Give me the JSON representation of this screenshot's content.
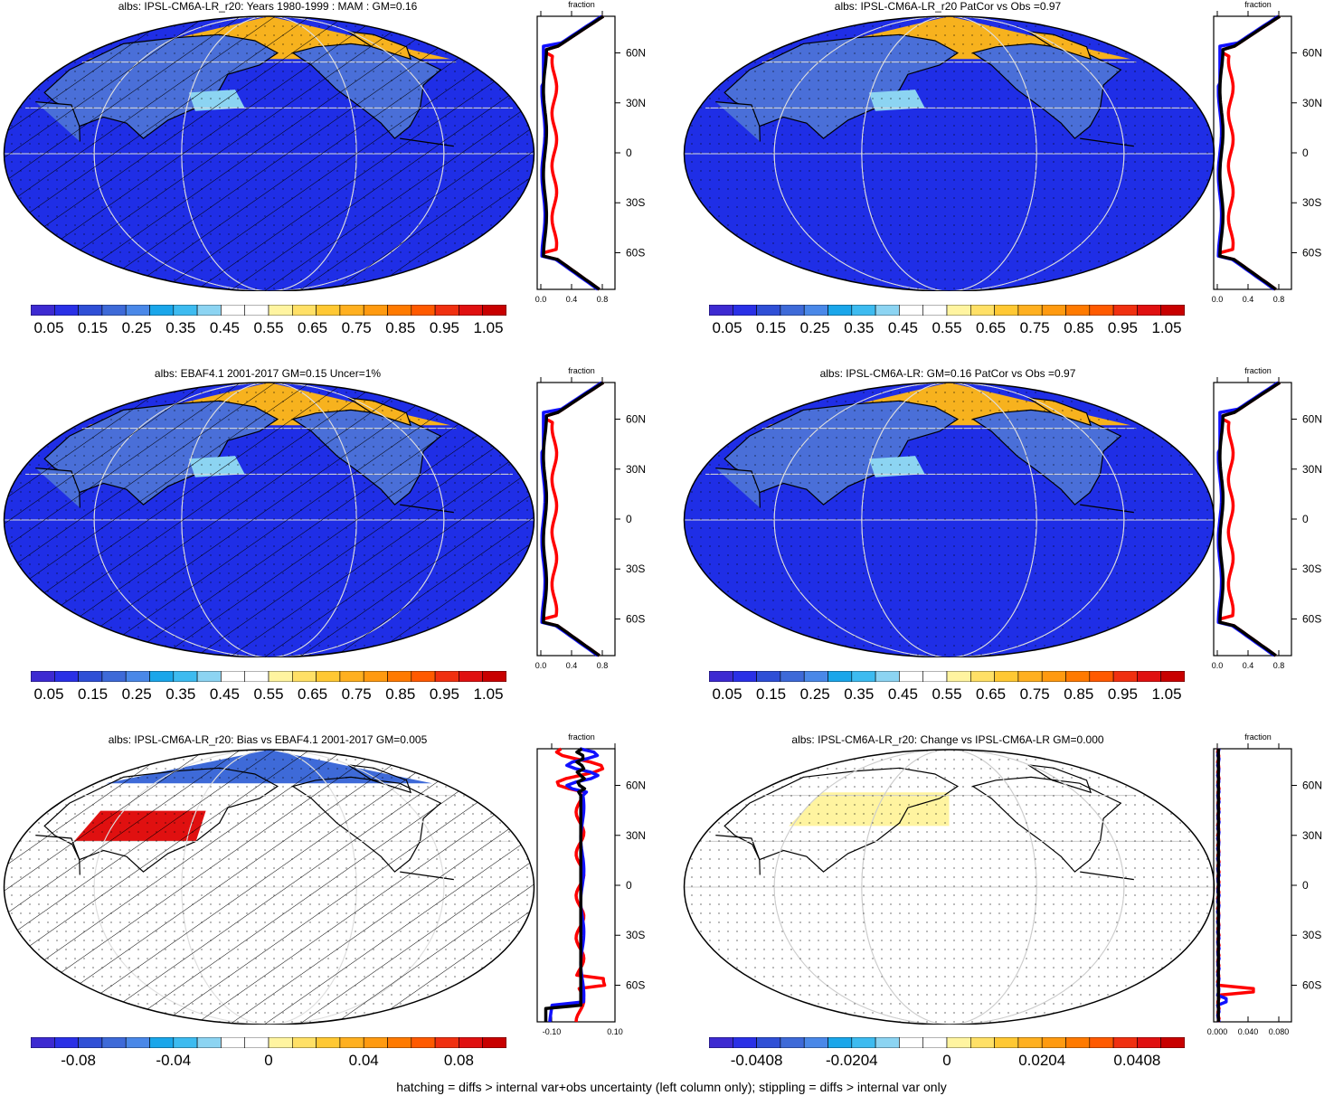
{
  "panels": [
    {
      "title": "albs: IPSL-CM6A-LR_r20: Years 1980-1999 : MAM : GM=0.16",
      "colorbar": "abs",
      "profile_x": [
        "0.0",
        "0.4",
        "0.8"
      ],
      "style": "abs",
      "hatch": true
    },
    {
      "title": "albs: IPSL-CM6A-LR_r20 PatCor vs Obs =0.97",
      "colorbar": "abs",
      "profile_x": [
        "0.0",
        "0.4",
        "0.8"
      ],
      "style": "abs",
      "hatch": false
    },
    {
      "title": "albs: EBAF4.1 2001-2017 GM=0.15 Uncer=1%",
      "colorbar": "abs",
      "profile_x": [
        "0.0",
        "0.4",
        "0.8"
      ],
      "style": "abs",
      "hatch": true
    },
    {
      "title": "albs: IPSL-CM6A-LR: GM=0.16 PatCor vs Obs =0.97",
      "colorbar": "abs",
      "profile_x": [
        "0.0",
        "0.4",
        "0.8"
      ],
      "style": "abs",
      "hatch": false
    },
    {
      "title": "albs: IPSL-CM6A-LR_r20: Bias vs EBAF4.1 2001-2017 GM=0.005",
      "colorbar": "bias",
      "profile_x": [
        "-0.10",
        "0.10"
      ],
      "style": "bias",
      "hatch": true
    },
    {
      "title": "albs: IPSL-CM6A-LR_r20: Change vs IPSL-CM6A-LR GM=0.000",
      "colorbar": "change",
      "profile_x": [
        "0.000",
        "0.040",
        "0.080"
      ],
      "style": "change",
      "hatch": false
    }
  ],
  "colorbars": {
    "abs": {
      "labels": [
        "0.05",
        "0.15",
        "0.25",
        "0.35",
        "0.45",
        "0.55",
        "0.65",
        "0.75",
        "0.85",
        "0.95",
        "1.05"
      ]
    },
    "bias": {
      "labels": [
        "-0.08",
        "-0.04",
        "0",
        "0.04",
        "0.08"
      ]
    },
    "change": {
      "labels": [
        "-0.0408",
        "-0.0204",
        "0",
        "0.0204",
        "0.0408"
      ]
    }
  },
  "colors": {
    "palette": [
      "#3d2ad1",
      "#2a30e6",
      "#2f4fd6",
      "#3e6ad8",
      "#4a88e8",
      "#1aa6ea",
      "#3dbbf0",
      "#8cd4f2",
      "#ffffff",
      "#ffffff",
      "#fff4a0",
      "#ffe066",
      "#ffc833",
      "#ffb020",
      "#ff9a10",
      "#ff7a00",
      "#ff5a00",
      "#f03010",
      "#e01010",
      "#c80000"
    ],
    "ocean_abs": "#1f2ee6",
    "land_abs": "#4a6fd8",
    "ice_abs": "#f7b21e",
    "red_line": "#ff0000",
    "blue_line": "#1010ff",
    "black_line": "#000000"
  },
  "profile_axis": {
    "y_labels": [
      "60N",
      "30N",
      "0",
      "30S",
      "60S"
    ],
    "title": "fraction"
  },
  "footer": "hatching = diffs > internal var+obs uncertainty (left column only); stippling = diffs > internal var only"
}
